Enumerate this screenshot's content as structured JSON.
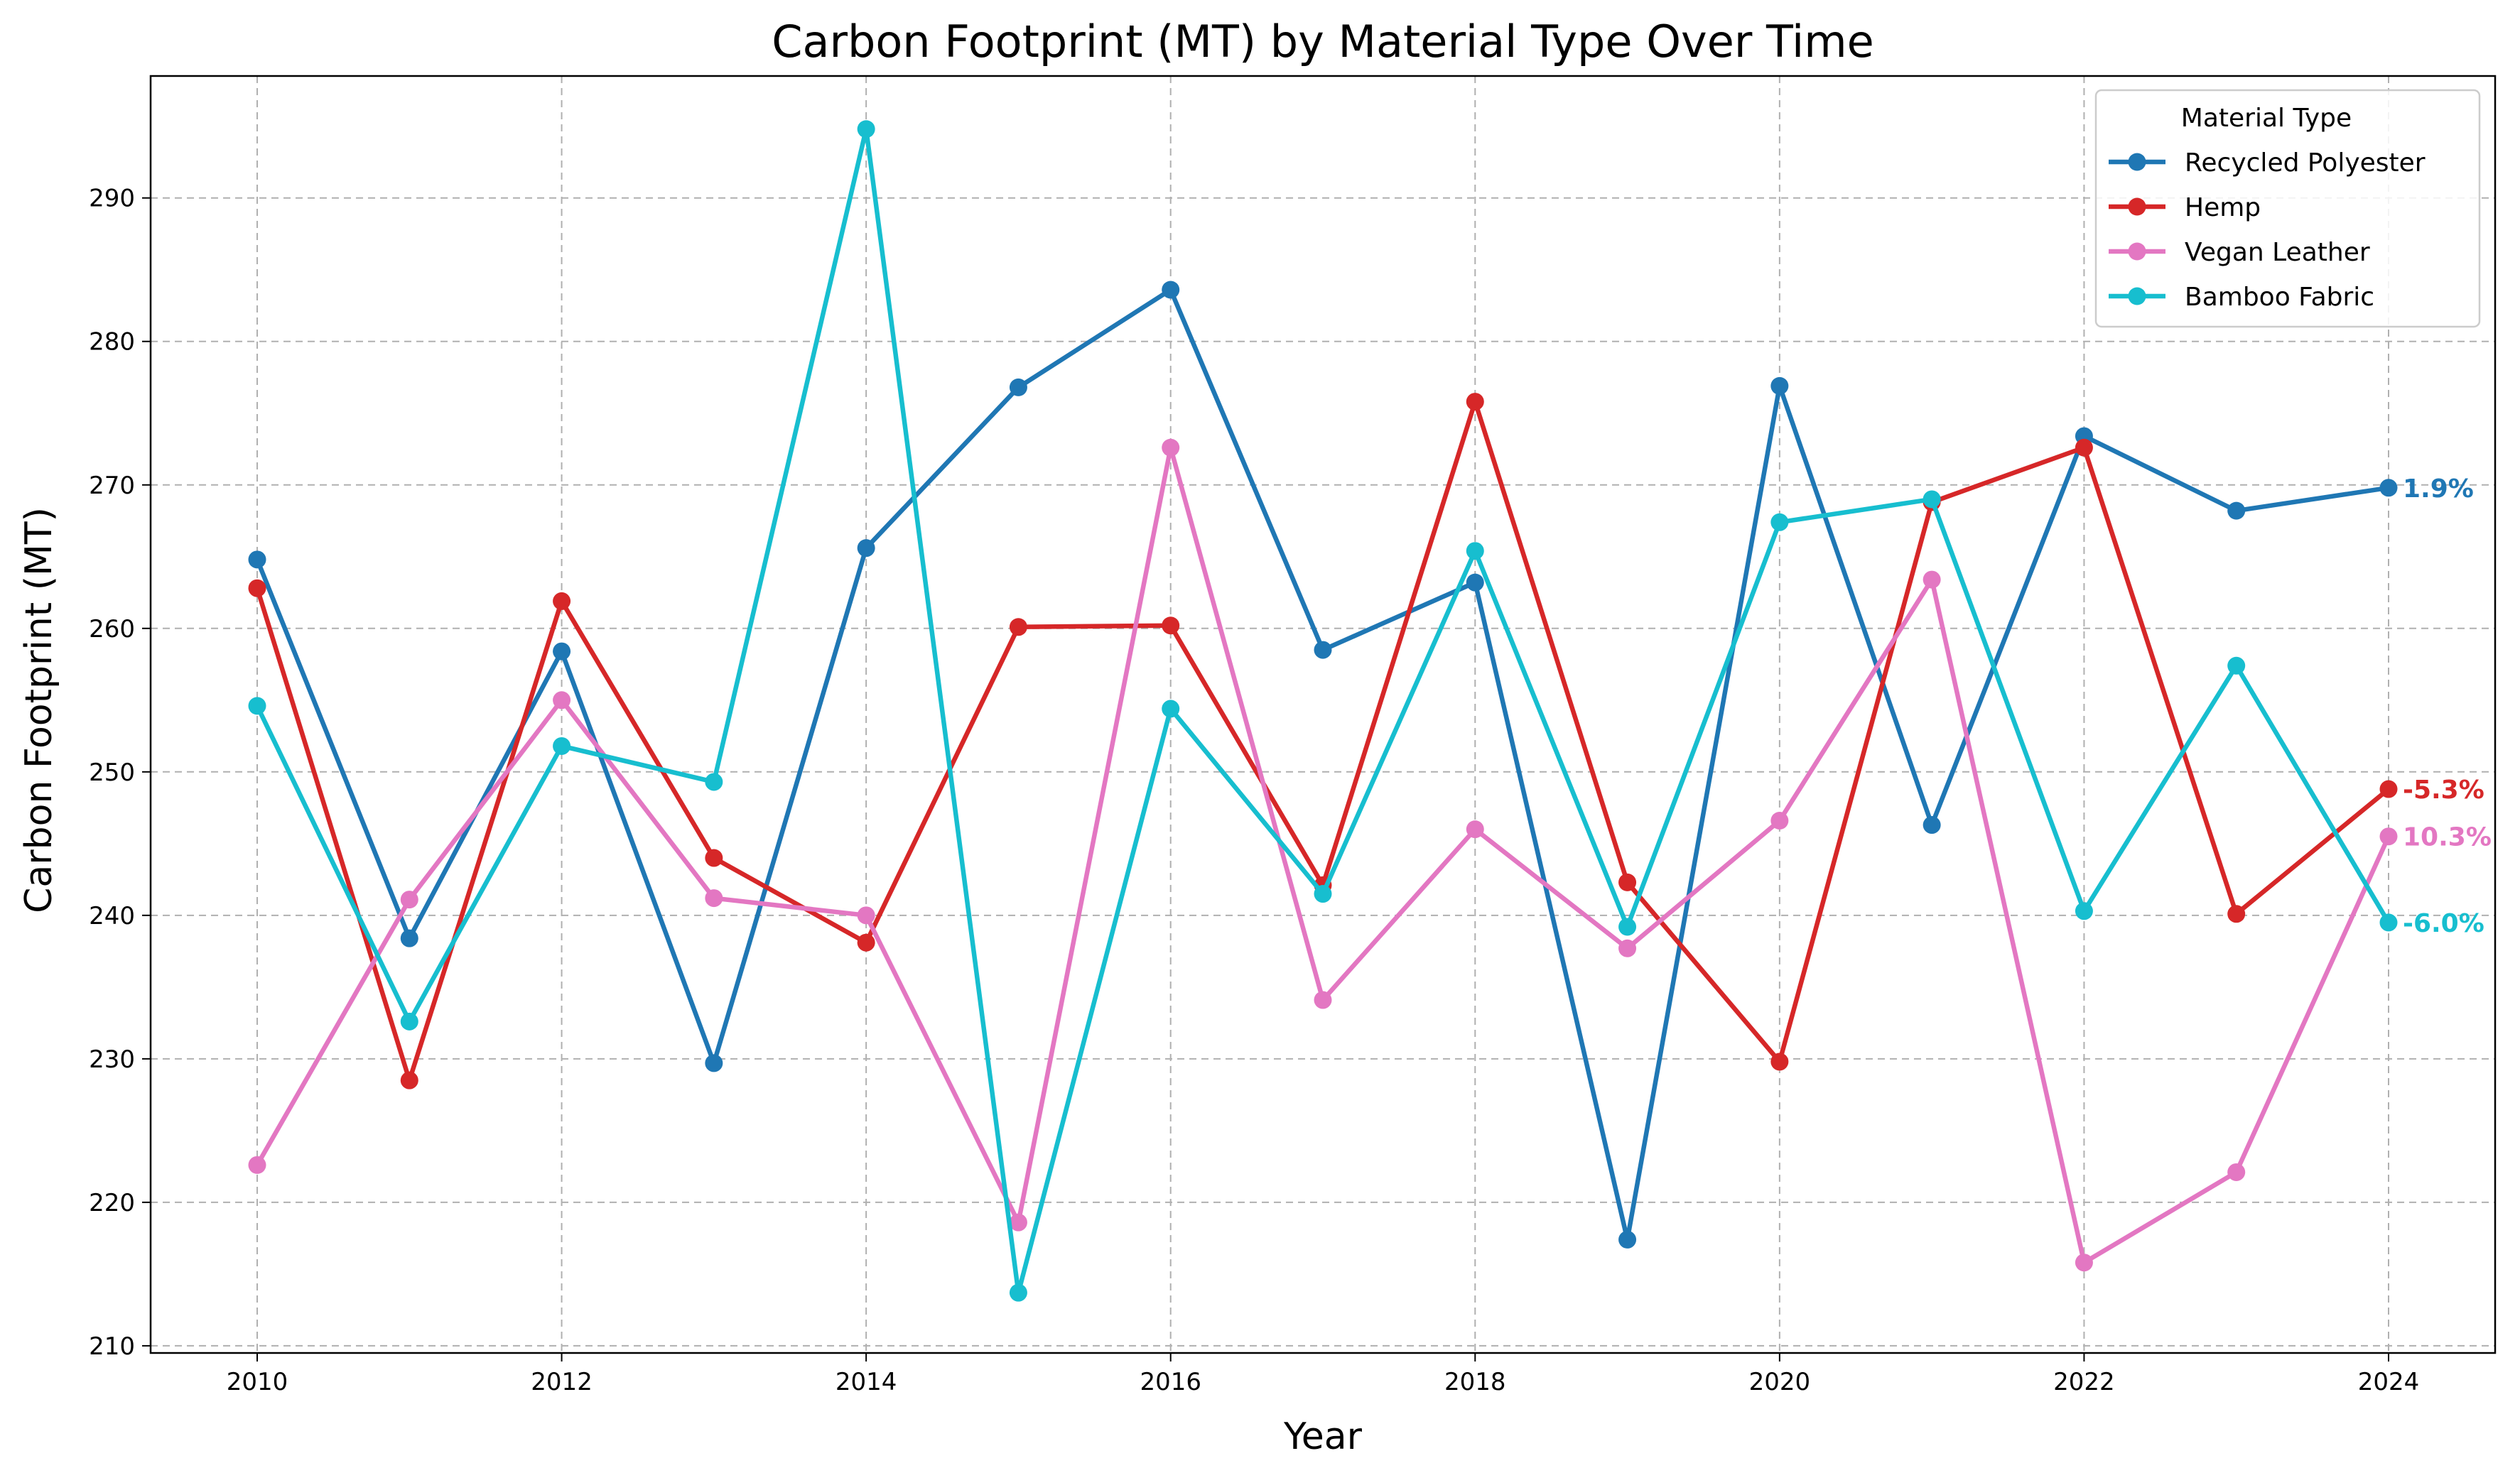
{
  "chart_data": {
    "type": "line",
    "title": "Carbon Footprint (MT) by Material Type Over Time",
    "xlabel": "Year",
    "ylabel": "Carbon Footprint (MT)",
    "x": [
      2010,
      2011,
      2012,
      2013,
      2014,
      2015,
      2016,
      2017,
      2018,
      2019,
      2020,
      2021,
      2022,
      2023,
      2024
    ],
    "xticks": [
      "2010",
      "2012",
      "2014",
      "2016",
      "2018",
      "2020",
      "2022",
      "2024"
    ],
    "yticks": [
      "210",
      "220",
      "230",
      "240",
      "250",
      "260",
      "270",
      "280",
      "290"
    ],
    "xlim": [
      2009.3,
      2024.7
    ],
    "ylim": [
      209.5,
      298.5
    ],
    "grid": true,
    "legend_title": "Material Type",
    "legend_position": "top-right",
    "series": [
      {
        "name": "Recycled Polyester",
        "color": "#1f77b4",
        "values": [
          264.8,
          238.4,
          258.4,
          229.7,
          265.6,
          276.8,
          283.6,
          258.5,
          263.2,
          217.4,
          276.9,
          246.3,
          273.4,
          268.2,
          269.8
        ],
        "end_label": "1.9%"
      },
      {
        "name": "Hemp",
        "color": "#d62728",
        "values": [
          262.8,
          228.5,
          261.9,
          244.0,
          238.1,
          260.1,
          260.2,
          242.1,
          275.8,
          242.3,
          229.8,
          268.8,
          272.6,
          240.1,
          248.8
        ],
        "end_label": "-5.3%"
      },
      {
        "name": "Vegan Leather",
        "color": "#e377c2",
        "values": [
          222.6,
          241.1,
          255.0,
          241.2,
          240.0,
          218.6,
          272.6,
          234.1,
          246.0,
          237.7,
          246.6,
          263.4,
          215.8,
          222.1,
          245.5
        ],
        "end_label": "10.3%"
      },
      {
        "name": "Bamboo Fabric",
        "color": "#17becf",
        "values": [
          254.6,
          232.6,
          251.8,
          249.3,
          294.8,
          213.7,
          254.4,
          241.5,
          265.4,
          239.2,
          267.4,
          269.0,
          240.3,
          257.4,
          239.5
        ],
        "end_label": "-6.0%"
      }
    ]
  }
}
